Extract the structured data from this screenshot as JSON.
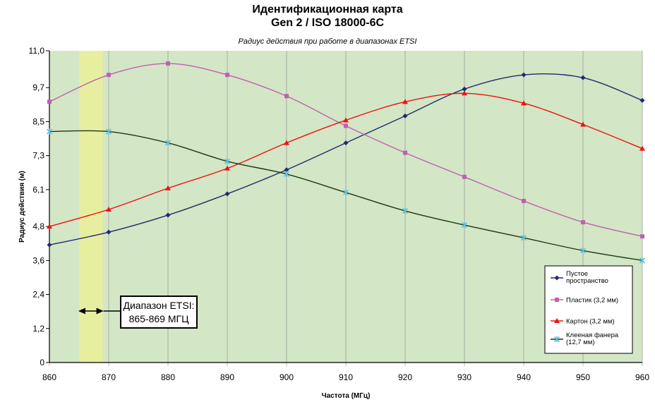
{
  "chart_data": {
    "type": "line",
    "title": "Идентификационная карта",
    "title2": "Gen 2 / ISO 18000-6C",
    "subtitle": "Радиус действия при работе в диапазонах ETSI",
    "xlabel": "Частота (МГц)",
    "ylabel": "Радиус действия (м)",
    "xlim": [
      860,
      960
    ],
    "ylim": [
      0,
      11
    ],
    "x_ticks": [
      "860",
      "870",
      "880",
      "890",
      "900",
      "910",
      "920",
      "930",
      "940",
      "950",
      "960"
    ],
    "y_ticks": [
      "0",
      "1,2",
      "2,4",
      "3,6",
      "4,8",
      "6,1",
      "7,3",
      "8,5",
      "9,7",
      "11,0"
    ],
    "y_tick_values": [
      0,
      1.2,
      2.4,
      3.6,
      4.8,
      6.1,
      7.3,
      8.5,
      9.7,
      11.0
    ],
    "x": [
      860,
      870,
      880,
      890,
      900,
      910,
      920,
      930,
      940,
      950,
      960
    ],
    "background_color": "#d3e6c6",
    "band": {
      "from": 865,
      "to": 869,
      "color": "#e8eea0"
    },
    "legend_position": "right",
    "series": [
      {
        "name": "Пустое пространство",
        "color": "#1f2a6e",
        "marker": "diamond",
        "values": [
          4.15,
          4.6,
          5.2,
          5.95,
          6.8,
          7.75,
          8.7,
          9.65,
          10.15,
          10.05,
          9.25
        ]
      },
      {
        "name": "Пластик (3,2 мм)",
        "color": "#c060b0",
        "marker": "square",
        "values": [
          9.2,
          10.15,
          10.55,
          10.15,
          9.4,
          8.35,
          7.4,
          6.55,
          5.7,
          4.95,
          4.45
        ]
      },
      {
        "name": "Картон (3,2 мм)",
        "color": "#ee1111",
        "marker": "triangle",
        "values": [
          4.8,
          5.4,
          6.15,
          6.85,
          7.75,
          8.55,
          9.2,
          9.5,
          9.15,
          8.4,
          7.55
        ]
      },
      {
        "name": "Клееная фанера (12,7 мм)",
        "color": "#1a3a10",
        "marker": "star",
        "marker_color": "#60c0e0",
        "values": [
          8.15,
          8.15,
          7.75,
          7.1,
          6.65,
          6.0,
          5.35,
          4.85,
          4.4,
          3.95,
          3.6
        ]
      }
    ]
  },
  "annotation": {
    "line1": "Диапазон ETSI:",
    "line2": "865-869 МГЦ"
  }
}
